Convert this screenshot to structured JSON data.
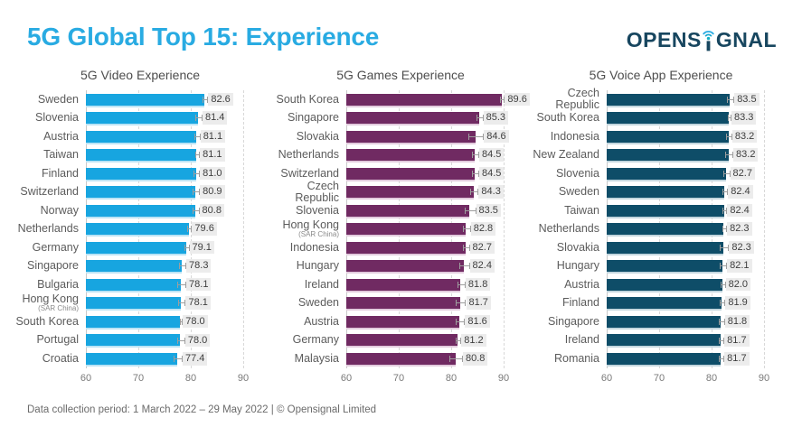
{
  "header": {
    "title": "5G Global Top 15: Experience",
    "logo": {
      "part1": "OPENS",
      "part2": "GNAL",
      "name": "Opensignal"
    }
  },
  "colors": {
    "title_accent": "#29ABE2",
    "logo_navy": "#17465F",
    "logo_signal_teal": "#14AFC4",
    "logo_signal_blue": "#29ABE2",
    "video_bar": "#17A5E0",
    "video_bar_underline": "#BCE4F5",
    "games_bar": "#702A62",
    "games_bar_underline": "#E2CBDD",
    "voice_bar": "#0E4D68",
    "voice_bar_underline": "#C3D6DE",
    "value_label_bg": "#ECECEC"
  },
  "footer": {
    "text": "Data collection period: 1 March 2022 – 29 May 2022 | © Opensignal Limited"
  },
  "chart_data": [
    {
      "type": "bar",
      "title": "5G Video Experience",
      "orientation": "horizontal",
      "color": "#17A5E0",
      "underline_color": "#BCE4F5",
      "xlim": [
        60,
        90
      ],
      "ticks": [
        60,
        70,
        80,
        90
      ],
      "grid": "vertical-dashed",
      "categories": [
        {
          "name": "Sweden"
        },
        {
          "name": "Slovenia"
        },
        {
          "name": "Austria"
        },
        {
          "name": "Taiwan"
        },
        {
          "name": "Finland"
        },
        {
          "name": "Switzerland"
        },
        {
          "name": "Norway"
        },
        {
          "name": "Netherlands"
        },
        {
          "name": "Germany"
        },
        {
          "name": "Singapore"
        },
        {
          "name": "Bulgaria"
        },
        {
          "name": "Hong Kong",
          "sub": "(SAR China)"
        },
        {
          "name": "South Korea"
        },
        {
          "name": "Portugal"
        },
        {
          "name": "Croatia"
        }
      ],
      "values": [
        82.6,
        81.4,
        81.1,
        81.1,
        81.0,
        80.9,
        80.8,
        79.6,
        79.1,
        78.3,
        78.1,
        78.1,
        78.0,
        78.0,
        77.4
      ],
      "ci": [
        0.4,
        0.5,
        0.4,
        0.3,
        0.4,
        0.5,
        0.5,
        0.3,
        0.3,
        0.5,
        0.7,
        0.6,
        0.15,
        0.6,
        0.7
      ]
    },
    {
      "type": "bar",
      "title": "5G Games Experience",
      "orientation": "horizontal",
      "color": "#702A62",
      "underline_color": "#E2CBDD",
      "xlim": [
        60,
        90
      ],
      "ticks": [
        60,
        70,
        80,
        90
      ],
      "grid": "vertical-dashed",
      "categories": [
        {
          "name": "South Korea"
        },
        {
          "name": "Singapore"
        },
        {
          "name": "Slovakia"
        },
        {
          "name": "Netherlands"
        },
        {
          "name": "Switzerland"
        },
        {
          "name": "Czech Republic"
        },
        {
          "name": "Slovenia"
        },
        {
          "name": "Hong Kong",
          "sub": "(SAR China)"
        },
        {
          "name": "Indonesia"
        },
        {
          "name": "Hungary"
        },
        {
          "name": "Ireland"
        },
        {
          "name": "Sweden"
        },
        {
          "name": "Austria"
        },
        {
          "name": "Germany"
        },
        {
          "name": "Malaysia"
        }
      ],
      "values": [
        89.6,
        85.3,
        84.6,
        84.5,
        84.5,
        84.3,
        83.5,
        82.8,
        82.7,
        82.4,
        81.8,
        81.7,
        81.6,
        81.2,
        80.8
      ],
      "ci": [
        0.3,
        0.5,
        1.3,
        0.5,
        0.5,
        0.6,
        0.9,
        0.6,
        0.5,
        0.8,
        0.6,
        0.8,
        0.7,
        0.4,
        1.1
      ]
    },
    {
      "type": "bar",
      "title": "5G Voice App Experience",
      "orientation": "horizontal",
      "color": "#0E4D68",
      "underline_color": "#C3D6DE",
      "xlim": [
        60,
        90
      ],
      "ticks": [
        60,
        70,
        80,
        90
      ],
      "grid": "vertical-dashed",
      "categories": [
        {
          "name": "Czech Republic"
        },
        {
          "name": "South Korea"
        },
        {
          "name": "Indonesia"
        },
        {
          "name": "New Zealand"
        },
        {
          "name": "Slovenia"
        },
        {
          "name": "Sweden"
        },
        {
          "name": "Taiwan"
        },
        {
          "name": "Netherlands"
        },
        {
          "name": "Slovakia"
        },
        {
          "name": "Hungary"
        },
        {
          "name": "Austria"
        },
        {
          "name": "Finland"
        },
        {
          "name": "Singapore"
        },
        {
          "name": "Ireland"
        },
        {
          "name": "Romania"
        }
      ],
      "values": [
        83.5,
        83.3,
        83.2,
        83.2,
        82.7,
        82.4,
        82.4,
        82.3,
        82.3,
        82.1,
        82.0,
        81.9,
        81.8,
        81.7,
        81.7
      ],
      "ci": [
        0.5,
        0.15,
        0.4,
        0.6,
        0.5,
        0.4,
        0.25,
        0.3,
        0.7,
        0.5,
        0.35,
        0.4,
        0.4,
        0.4,
        0.4
      ]
    }
  ]
}
